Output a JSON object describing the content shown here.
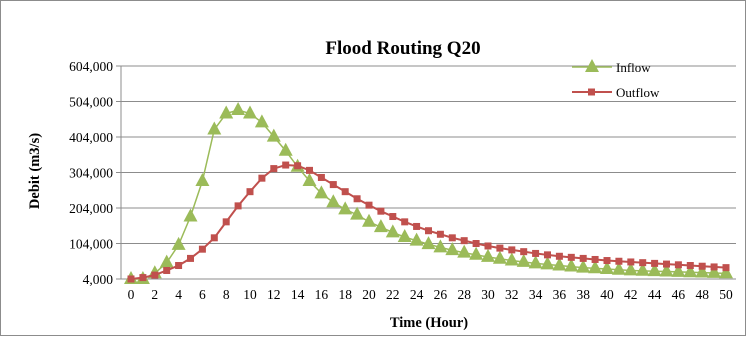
{
  "chart_data": {
    "type": "line",
    "title": "Flood Routing Q20",
    "xlabel": "Time (Hour)",
    "ylabel": "Debit (m3/s)",
    "x": [
      0,
      1,
      2,
      3,
      4,
      5,
      6,
      7,
      8,
      9,
      10,
      11,
      12,
      13,
      14,
      15,
      16,
      17,
      18,
      19,
      20,
      21,
      22,
      23,
      24,
      25,
      26,
      27,
      28,
      29,
      30,
      31,
      32,
      33,
      34,
      35,
      36,
      37,
      38,
      39,
      40,
      41,
      42,
      43,
      44,
      45,
      46,
      47,
      48,
      49,
      50
    ],
    "xlim": [
      0,
      50
    ],
    "ylim": [
      4000,
      604000
    ],
    "yticks": [
      4000,
      104000,
      204000,
      304000,
      404000,
      504000,
      604000
    ],
    "ytick_labels": [
      "4,000",
      "104,000",
      "204,000",
      "304,000",
      "404,000",
      "504,000",
      "604,000"
    ],
    "xticks": [
      0,
      2,
      4,
      6,
      8,
      10,
      12,
      14,
      16,
      18,
      20,
      22,
      24,
      26,
      28,
      30,
      32,
      34,
      36,
      38,
      40,
      42,
      44,
      46,
      48,
      50
    ],
    "xtick_labels": [
      "0",
      "2",
      "4",
      "6",
      "8",
      "10",
      "12",
      "14",
      "16",
      "18",
      "20",
      "22",
      "24",
      "26",
      "28",
      "30",
      "32",
      "34",
      "36",
      "38",
      "40",
      "42",
      "44",
      "46",
      "48",
      "50"
    ],
    "grid": "horizontal",
    "legend": "top-right",
    "series": [
      {
        "name": "Inflow",
        "color": "#9bbb59",
        "marker": "triangle",
        "values": [
          4000,
          4000,
          20000,
          50000,
          100000,
          180000,
          280000,
          425000,
          470000,
          480000,
          470000,
          445000,
          405000,
          365000,
          320000,
          280000,
          245000,
          220000,
          200000,
          185000,
          165000,
          150000,
          135000,
          122000,
          112000,
          102000,
          93000,
          85000,
          78000,
          72000,
          66000,
          61000,
          56000,
          52000,
          48000,
          45000,
          42000,
          39000,
          36000,
          34000,
          32000,
          30000,
          28000,
          27000,
          26000,
          25000,
          24000,
          23000,
          22000,
          21000,
          20000
        ]
      },
      {
        "name": "Outflow",
        "color": "#c0504d",
        "marker": "square",
        "values": [
          4000,
          8000,
          15000,
          28000,
          42000,
          62000,
          88000,
          120000,
          165000,
          210000,
          250000,
          288000,
          315000,
          325000,
          323000,
          310000,
          290000,
          270000,
          250000,
          230000,
          212000,
          195000,
          180000,
          165000,
          152000,
          140000,
          130000,
          120000,
          112000,
          104000,
          97000,
          91000,
          86000,
          81000,
          76000,
          72000,
          68000,
          65000,
          62000,
          59000,
          56000,
          54000,
          52000,
          50000,
          48000,
          46000,
          44000,
          42000,
          40000,
          38000,
          36000
        ]
      }
    ]
  }
}
